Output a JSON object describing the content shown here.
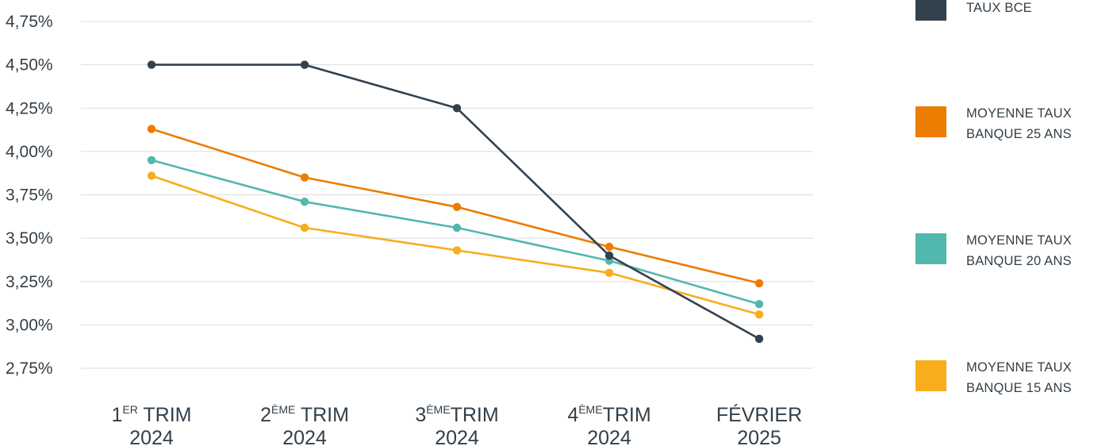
{
  "chart_data": {
    "type": "line",
    "categories": [
      {
        "main": "1",
        "sup": "ER",
        "rest": " TRIM",
        "year": "2024"
      },
      {
        "main": "2",
        "sup": "ÈME",
        "rest": " TRIM",
        "year": "2024"
      },
      {
        "main": "3",
        "sup": "ÈME",
        "rest": "TRIM",
        "year": "2024"
      },
      {
        "main": "4",
        "sup": "ÈME",
        "rest": "TRIM",
        "year": "2024"
      },
      {
        "main": "FÉVRIER",
        "sup": "",
        "rest": "",
        "year": "2025"
      }
    ],
    "y_ticks": [
      "4,75%",
      "4,50%",
      "4,25%",
      "4,00%",
      "3,75%",
      "3,50%",
      "3,25%",
      "3,00%",
      "2,75%"
    ],
    "ylim": [
      2.75,
      4.75
    ],
    "grid": true,
    "legend_position": "right",
    "series": [
      {
        "name_lines": [
          "TAUX BCE"
        ],
        "color": "#33414e",
        "values": [
          4.5,
          4.5,
          4.25,
          3.4,
          2.92
        ]
      },
      {
        "name_lines": [
          "MOYENNE TAUX",
          "BANQUE 25 ANS"
        ],
        "color": "#ec7c02",
        "values": [
          4.13,
          3.85,
          3.68,
          3.45,
          3.24
        ]
      },
      {
        "name_lines": [
          "MOYENNE TAUX",
          "BANQUE 20 ANS"
        ],
        "color": "#52b7ad",
        "values": [
          3.95,
          3.71,
          3.56,
          3.37,
          3.12
        ]
      },
      {
        "name_lines": [
          "MOYENNE TAUX",
          "BANQUE 15 ANS"
        ],
        "color": "#f7ad1c",
        "values": [
          3.86,
          3.56,
          3.43,
          3.3,
          3.06
        ]
      }
    ]
  }
}
